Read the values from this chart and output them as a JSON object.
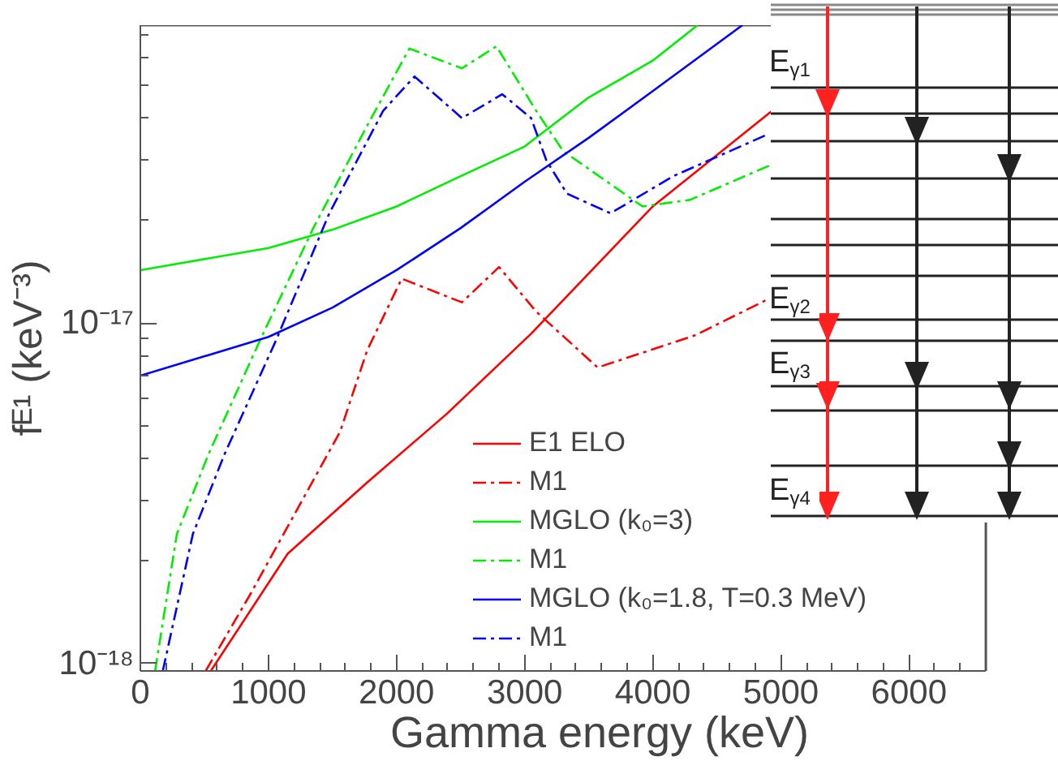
{
  "chart_data": {
    "type": "line",
    "xlabel": "Gamma energy (keV)",
    "ylabel": "fᴱ¹ (keV⁻³)",
    "log": "y",
    "grid": false,
    "legend": "bottom right",
    "xlim": [
      0,
      6600
    ],
    "ylim": [
      9.5e-19,
      7.5e-17
    ],
    "xticks": [
      0,
      {
        "value": 200,
        "label": null
      },
      {
        "value": 400,
        "label": null
      },
      {
        "value": 600,
        "label": null
      },
      {
        "value": 800,
        "label": null
      },
      1000,
      {
        "value": 1200,
        "label": null
      },
      {
        "value": 1400,
        "label": null
      },
      {
        "value": 1600,
        "label": null
      },
      {
        "value": 1800,
        "label": null
      },
      2000,
      {
        "value": 2200,
        "label": null
      },
      {
        "value": 2400,
        "label": null
      },
      {
        "value": 2600,
        "label": null
      },
      {
        "value": 2800,
        "label": null
      },
      3000,
      {
        "value": 3200,
        "label": null
      },
      {
        "value": 3400,
        "label": null
      },
      {
        "value": 3600,
        "label": null
      },
      {
        "value": 3800,
        "label": null
      },
      4000,
      {
        "value": 4200,
        "label": null
      },
      {
        "value": 4400,
        "label": null
      },
      {
        "value": 4600,
        "label": null
      },
      {
        "value": 4800,
        "label": null
      },
      5000,
      {
        "value": 5200,
        "label": null
      },
      {
        "value": 5400,
        "label": null
      },
      {
        "value": 5600,
        "label": null
      },
      {
        "value": 5800,
        "label": null
      },
      6000,
      {
        "value": 6200,
        "label": null
      },
      {
        "value": 6400,
        "label": null
      }
    ],
    "yticks": [
      {
        "value": 1e-18,
        "label": "10⁻¹⁸"
      },
      {
        "value": 2e-18,
        "label": null
      },
      {
        "value": 3e-18,
        "label": null
      },
      {
        "value": 4e-18,
        "label": null
      },
      {
        "value": 5e-18,
        "label": null
      },
      {
        "value": 6e-18,
        "label": null
      },
      {
        "value": 7e-18,
        "label": null
      },
      {
        "value": 8e-18,
        "label": null
      },
      {
        "value": 9e-18,
        "label": null
      },
      {
        "value": 1e-17,
        "label": "10⁻¹⁷"
      },
      {
        "value": 2e-17,
        "label": null
      },
      {
        "value": 3e-17,
        "label": null
      },
      {
        "value": 4e-17,
        "label": null
      },
      {
        "value": 5e-17,
        "label": null
      },
      {
        "value": 6e-17,
        "label": null
      },
      {
        "value": 7e-17,
        "label": null
      }
    ],
    "annotations": [
      "E$_{γ1}$",
      "E$_{γ2}$",
      "E$_{γ3}$",
      "E$_{γ4}$"
    ],
    "series": [
      {
        "name": "E1 ELO",
        "color": "#ff0000",
        "line_style": "solid",
        "x": [
          550,
          1150,
          1770,
          2390,
          3050,
          4000,
          4930
        ],
        "values": [
          9.5e-19,
          2.1e-18,
          3.4e-18,
          5.4e-18,
          9.3e-18,
          2.2e-17,
          4.2e-17
        ]
      },
      {
        "name": "M1",
        "color": "#ff0000",
        "line_style": "dashdot",
        "x": [
          510,
          860,
          1560,
          1770,
          2040,
          2510,
          2800,
          3090,
          3570,
          4330,
          4910
        ],
        "values": [
          9.5e-19,
          1.6e-18,
          4.8e-18,
          8.3e-18,
          1.35e-17,
          1.15e-17,
          1.46e-17,
          1.08e-17,
          7.4e-18,
          9.2e-18,
          1.18e-17
        ]
      },
      {
        "name": "MGLO (k₀=3)",
        "color": "#00ee00",
        "line_style": "solid",
        "x": [
          0,
          1000,
          1500,
          2000,
          2500,
          3000,
          3500,
          4000,
          4350
        ],
        "values": [
          1.43e-17,
          1.66e-17,
          1.88e-17,
          2.2e-17,
          2.7e-17,
          3.3e-17,
          4.6e-17,
          5.9e-17,
          7.5e-17
        ]
      },
      {
        "name": "M1",
        "color": "#00ee00",
        "line_style": "dashdot",
        "x": [
          115,
          285,
          530,
          940,
          1350,
          1770,
          2100,
          2510,
          2780,
          3090,
          3300,
          3920,
          4290,
          4910
        ],
        "values": [
          9.5e-19,
          2.4e-18,
          4.1e-18,
          9e-18,
          1.9e-17,
          3.8e-17,
          6.4e-17,
          5.6e-17,
          6.5e-17,
          4.2e-17,
          3.2e-17,
          2.2e-17,
          2.3e-17,
          2.9e-17
        ]
      },
      {
        "name": "MGLO (k₀=1.8, T=0.3 MeV)",
        "color": "#0000ff",
        "line_style": "solid",
        "x": [
          0,
          1000,
          1500,
          2000,
          2500,
          3000,
          3500,
          4000,
          4700
        ],
        "values": [
          7e-18,
          9.1e-18,
          1.11e-17,
          1.43e-17,
          1.9e-17,
          2.6e-17,
          3.5e-17,
          4.8e-17,
          7.5e-17
        ]
      },
      {
        "name": "M1",
        "color": "#0000ff",
        "line_style": "dashdot",
        "x": [
          175,
          410,
          655,
          1065,
          1475,
          1895,
          2140,
          2510,
          2825,
          3050,
          3170,
          3330,
          3670,
          4160,
          4910
        ],
        "values": [
          9.5e-19,
          2.4e-18,
          4.1e-18,
          9e-18,
          2.1e-17,
          4.2e-17,
          5.3e-17,
          4e-17,
          4.7e-17,
          4e-17,
          3e-17,
          2.4e-17,
          2.1e-17,
          2.7e-17,
          3.6e-17
        ]
      }
    ]
  }
}
